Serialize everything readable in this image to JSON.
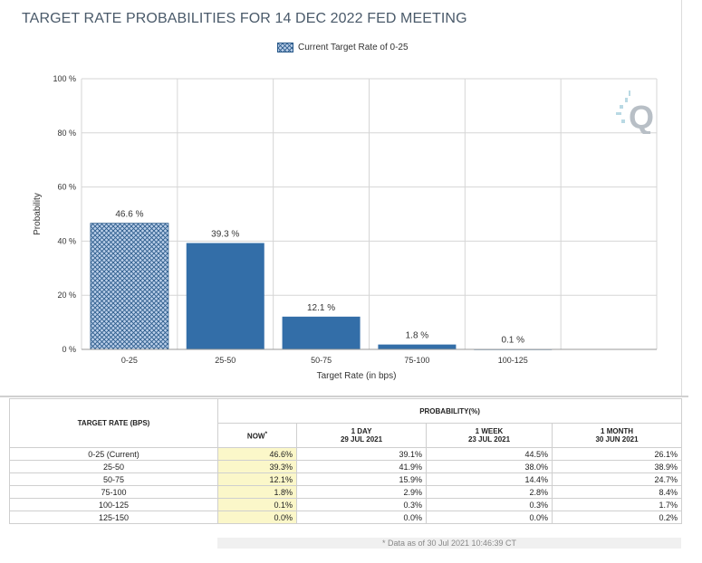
{
  "page": {
    "title": "TARGET RATE PROBABILITIES FOR 14 DEC 2022 FED MEETING"
  },
  "legend": {
    "label": "Current Target Rate of 0-25"
  },
  "colors": {
    "bar": "#336ea8",
    "bar_current_fill": "#bcd0ea",
    "bar_current_hatch": "#2a5a8a",
    "grid": "#d6d6d6",
    "now_cell": "#fbf7c9"
  },
  "watermark": {
    "letter": "Q"
  },
  "chart_data": {
    "type": "bar",
    "title": "TARGET RATE PROBABILITIES FOR 14 DEC 2022 FED MEETING",
    "xlabel": "Target Rate (in bps)",
    "ylabel": "Probability",
    "ylim": [
      0,
      100
    ],
    "yticks": [
      0,
      20,
      40,
      60,
      80,
      100
    ],
    "ytick_labels": [
      "0 %",
      "20 %",
      "40 %",
      "60 %",
      "80 %",
      "100 %"
    ],
    "categories": [
      "0-25",
      "25-50",
      "50-75",
      "75-100",
      "100-125"
    ],
    "values": [
      46.6,
      39.3,
      12.1,
      1.8,
      0.1
    ],
    "value_labels": [
      "46.6 %",
      "39.3 %",
      "12.1 %",
      "1.8 %",
      "0.1 %"
    ],
    "current_index": 0,
    "legend": [
      "Current Target Rate of 0-25"
    ],
    "legend_position": "top-center",
    "grid": true
  },
  "table": {
    "target_rate_header": "TARGET RATE (BPS)",
    "probability_header": "PROBABILITY(%)",
    "columns": [
      {
        "label": "NOW",
        "sup": "*",
        "date": ""
      },
      {
        "label": "1 DAY",
        "sup": "",
        "date": "29 JUL 2021"
      },
      {
        "label": "1 WEEK",
        "sup": "",
        "date": "23 JUL 2021"
      },
      {
        "label": "1 MONTH",
        "sup": "",
        "date": "30 JUN 2021"
      }
    ],
    "rows": [
      {
        "rate": "0-25 (Current)",
        "values": [
          "46.6%",
          "39.1%",
          "44.5%",
          "26.1%"
        ]
      },
      {
        "rate": "25-50",
        "values": [
          "39.3%",
          "41.9%",
          "38.0%",
          "38.9%"
        ]
      },
      {
        "rate": "50-75",
        "values": [
          "12.1%",
          "15.9%",
          "14.4%",
          "24.7%"
        ]
      },
      {
        "rate": "75-100",
        "values": [
          "1.8%",
          "2.9%",
          "2.8%",
          "8.4%"
        ]
      },
      {
        "rate": "100-125",
        "values": [
          "0.1%",
          "0.3%",
          "0.3%",
          "1.7%"
        ]
      },
      {
        "rate": "125-150",
        "values": [
          "0.0%",
          "0.0%",
          "0.0%",
          "0.2%"
        ]
      }
    ],
    "footnote": "* Data as of 30 Jul 2021 10:46:39 CT"
  }
}
